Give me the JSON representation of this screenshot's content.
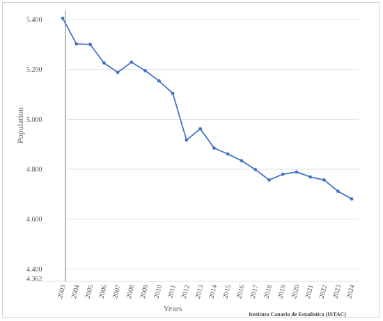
{
  "chart_data": {
    "type": "line",
    "title": "",
    "xlabel": "Years",
    "ylabel": "Population",
    "source": "Instituto Canario de Estadística (ISTAC)",
    "ylim": [
      4362,
      5400
    ],
    "yticks": [
      {
        "value": 5400,
        "label": "5.400"
      },
      {
        "value": 5200,
        "label": "5.200"
      },
      {
        "value": 5000,
        "label": "5.000"
      },
      {
        "value": 4800,
        "label": "4.800"
      },
      {
        "value": 4600,
        "label": "4.600"
      },
      {
        "value": 4400,
        "label": "4.400"
      },
      {
        "value": 4362,
        "label": "4.362"
      }
    ],
    "grid": true,
    "line_color": "#4472c4",
    "x": [
      "2003",
      "2004",
      "2005",
      "2006",
      "2007",
      "2008",
      "2009",
      "2010",
      "2011",
      "2012",
      "2013",
      "2014",
      "2015",
      "2016",
      "2017",
      "2018",
      "2019",
      "2020",
      "2021",
      "2022",
      "2023",
      "2024"
    ],
    "values": [
      5405,
      5302,
      5300,
      5226,
      5188,
      5229,
      5195,
      5154,
      5104,
      4917,
      4962,
      4885,
      4861,
      4834,
      4799,
      4757,
      4780,
      4789,
      4769,
      4757,
      4712,
      4681
    ]
  }
}
